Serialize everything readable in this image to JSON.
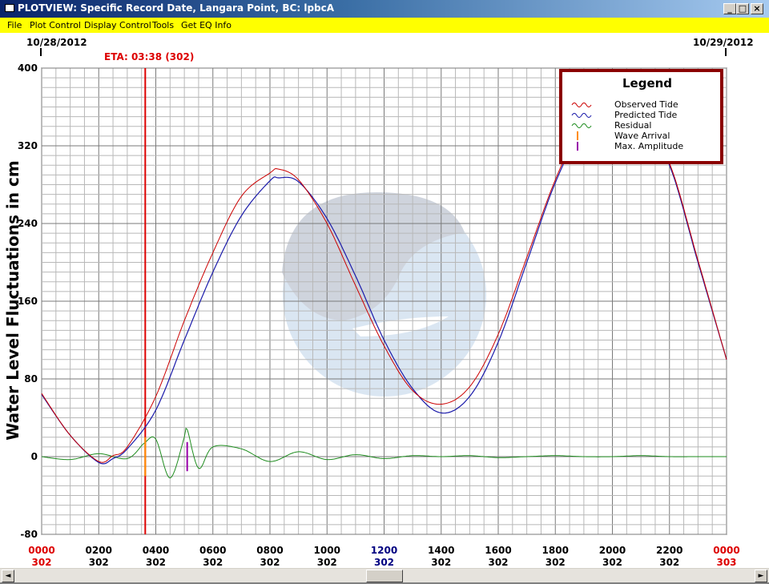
{
  "window": {
    "title": "PLOTVIEW: Specific Record Date, Langara Point, BC: lpbcA",
    "min_label": "_",
    "max_label": "□",
    "close_label": "×"
  },
  "menu": [
    "File",
    "Plot Control",
    "Display Control",
    "Tools",
    "Get EQ Info"
  ],
  "scroll": {
    "left_arrow": "◄",
    "right_arrow": "►",
    "thumb_position": 0.5
  },
  "icons": {
    "scroll_left": "scroll-left-icon",
    "scroll_right": "scroll-right-icon"
  },
  "colors": {
    "observed": "#cc0000",
    "predicted": "#1a1aaa",
    "residual": "#1e8c1e",
    "wave_arrival": "#ff8c00",
    "max_amplitude": "#9900aa",
    "eta_line": "#dd0000",
    "legend_border": "#8b0000",
    "day_label_red": "#dd0000",
    "noon_label_blue": "#000080"
  },
  "chart_data": {
    "type": "line",
    "ylabel": "Water Level Fluctuations in cm",
    "ylim": [
      -80,
      400
    ],
    "xlim": [
      0,
      24
    ],
    "grid": true,
    "yticks": [
      "400",
      "320",
      "240",
      "160",
      "80",
      "0",
      "-80"
    ],
    "date_start": "10/28/2012",
    "date_end": "10/29/2012",
    "eta_label": "ETA: 03:38 (302)",
    "eta_hour": 3.63,
    "wave_arrival_hour": 3.63,
    "max_amplitude_hour": 5.1,
    "xtick_times": [
      "0000",
      "0200",
      "0400",
      "0600",
      "0800",
      "1000",
      "1200",
      "1400",
      "1600",
      "1800",
      "2000",
      "2200",
      "0000"
    ],
    "xtick_days": [
      "302",
      "302",
      "302",
      "302",
      "302",
      "302",
      "302",
      "302",
      "302",
      "302",
      "302",
      "302",
      "303"
    ],
    "legend": {
      "title": "Legend",
      "placement": "top-right",
      "items": [
        "Observed Tide",
        "Predicted Tide",
        "Residual",
        "Wave Arrival",
        "Max. Amplitude"
      ]
    },
    "series": [
      {
        "name": "Predicted Tide",
        "x": [
          0,
          1,
          2,
          2.5,
          3,
          4,
          5,
          6,
          7,
          8,
          8.3,
          9,
          10,
          11,
          12,
          13,
          14,
          15,
          16,
          17,
          18,
          19,
          20,
          21,
          22,
          23,
          24
        ],
        "y": [
          64,
          22,
          -6,
          -2,
          8,
          48,
          120,
          190,
          248,
          284,
          287,
          283,
          245,
          186,
          120,
          70,
          45,
          62,
          118,
          200,
          282,
          340,
          360,
          345,
          300,
          200,
          100
        ]
      },
      {
        "name": "Observed Tide",
        "x": [
          0,
          1,
          2,
          2.5,
          3,
          4,
          5,
          6,
          7,
          8,
          8.3,
          9,
          10,
          11,
          12,
          13,
          14,
          15,
          16,
          17,
          18,
          19,
          20,
          21,
          22,
          23,
          24
        ],
        "y": [
          65,
          22,
          -5,
          1,
          10,
          62,
          140,
          210,
          268,
          292,
          296,
          285,
          240,
          176,
          114,
          68,
          54,
          72,
          126,
          205,
          285,
          345,
          362,
          348,
          302,
          202,
          100
        ]
      },
      {
        "name": "Residual",
        "x": [
          0,
          1,
          2,
          3,
          3.6,
          4,
          4.5,
          5,
          5.1,
          5.5,
          6,
          7,
          8,
          9,
          10,
          11,
          12,
          13,
          14,
          15,
          16,
          17,
          18,
          19,
          20,
          21,
          22,
          23,
          24
        ],
        "y": [
          0,
          -3,
          3,
          -2,
          14,
          18,
          -22,
          20,
          28,
          -12,
          10,
          8,
          -5,
          5,
          -3,
          2,
          -2,
          1,
          0,
          1,
          -1,
          0,
          1,
          0,
          0,
          1,
          0,
          0,
          0
        ]
      }
    ]
  }
}
